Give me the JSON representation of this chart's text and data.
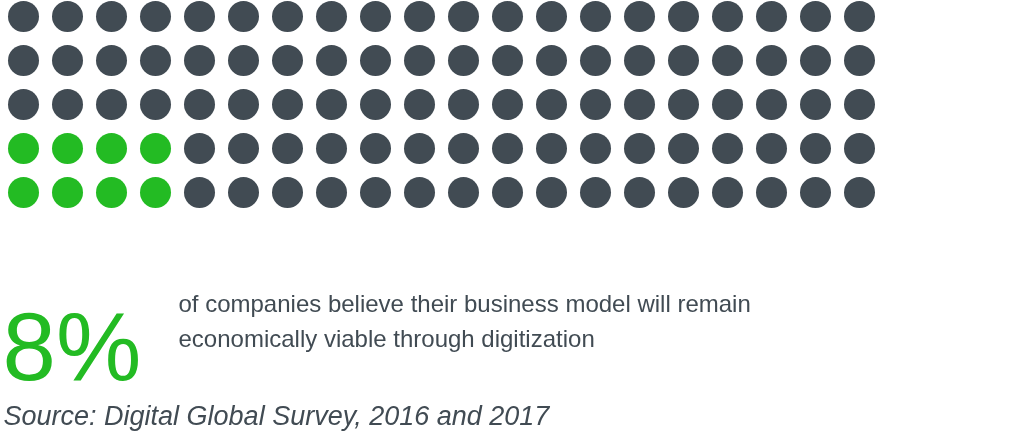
{
  "chart_data": {
    "type": "other",
    "categories": [
      "of companies believe their business model will remain economically viable through digitization"
    ],
    "values": [
      8
    ],
    "colors": [
      "#23bb23"
    ],
    "value_labels": [
      "8%"
    ],
    "annotations": [
      "Source: Digital Global Survey, 2016 and 2017"
    ]
  }
}
